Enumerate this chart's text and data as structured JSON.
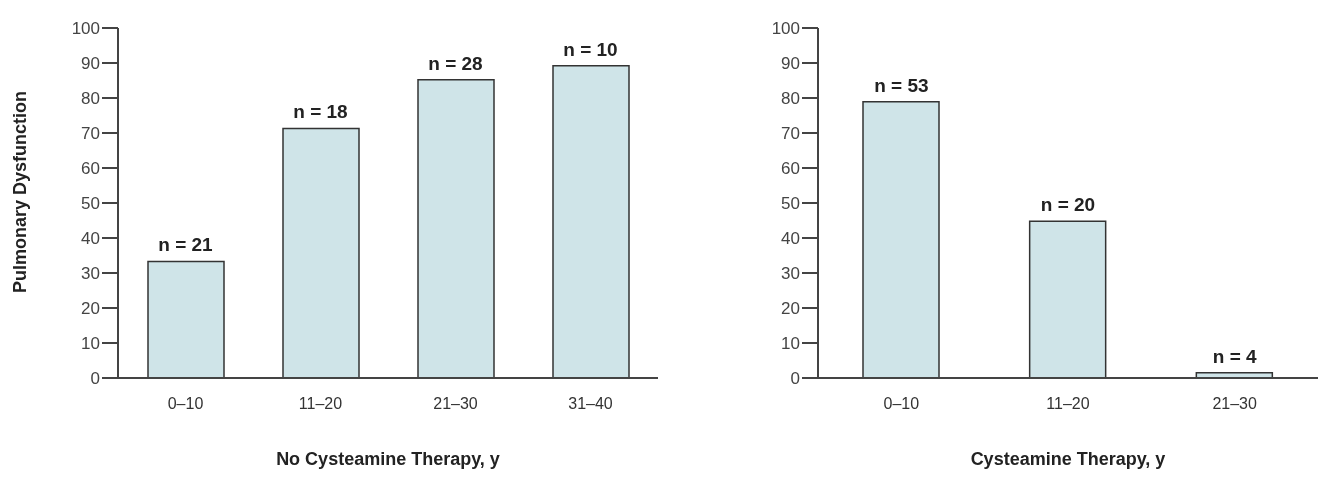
{
  "chart_data": [
    {
      "type": "bar",
      "xlabel": "No Cysteamine Therapy, y",
      "ylabel": "Pulmonary Dysfunction",
      "categories": [
        "0–10",
        "11–20",
        "21–30",
        "31–40"
      ],
      "values": [
        33.3,
        71.3,
        85.2,
        89.2
      ],
      "color": "#cfe4e8",
      "ylim": [
        0,
        100
      ],
      "yticks": [
        0,
        10,
        20,
        30,
        40,
        50,
        60,
        70,
        80,
        90,
        100
      ],
      "annotations": [
        {
          "text": "n = 21",
          "x": "0–10",
          "y": 33.3
        },
        {
          "text": "n = 18",
          "x": "11–20",
          "y": 71.3
        },
        {
          "text": "n = 28",
          "x": "21–30",
          "y": 85.2
        },
        {
          "text": "n = 10",
          "x": "31–40",
          "y": 89.2
        }
      ]
    },
    {
      "type": "bar",
      "xlabel": "Cysteamine Therapy, y",
      "categories": [
        "0–10",
        "11–20",
        "21–30"
      ],
      "values": [
        78.9,
        44.8,
        1.5
      ],
      "color": "#cfe4e8",
      "ylim": [
        0,
        100
      ],
      "yticks": [
        0,
        10,
        20,
        30,
        40,
        50,
        60,
        70,
        80,
        90,
        100
      ],
      "annotations": [
        {
          "text": "n = 53",
          "x": "0–10",
          "y": 78.9
        },
        {
          "text": "n = 20",
          "x": "11–20",
          "y": 44.8
        },
        {
          "text": "n = 4",
          "x": "21–30",
          "y": 1.5
        }
      ]
    }
  ]
}
